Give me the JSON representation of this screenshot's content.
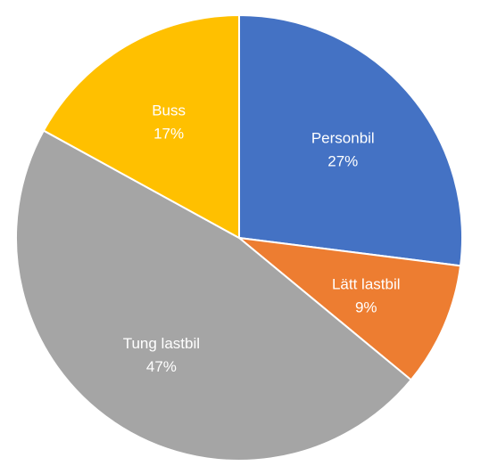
{
  "chart_data": {
    "type": "pie",
    "start": "12 o'clock",
    "direction": "clockwise",
    "slices": [
      {
        "label": "Personbil",
        "value": 27,
        "value_label": "27%",
        "color": "#4472C4"
      },
      {
        "label": "Lätt lastbil",
        "value": 9,
        "value_label": "9%",
        "color": "#ED7D31"
      },
      {
        "label": "Tung lastbil",
        "value": 47,
        "value_label": "47%",
        "color": "#A5A5A5"
      },
      {
        "label": "Buss",
        "value": 17,
        "value_label": "17%",
        "color": "#FFC000"
      }
    ]
  }
}
